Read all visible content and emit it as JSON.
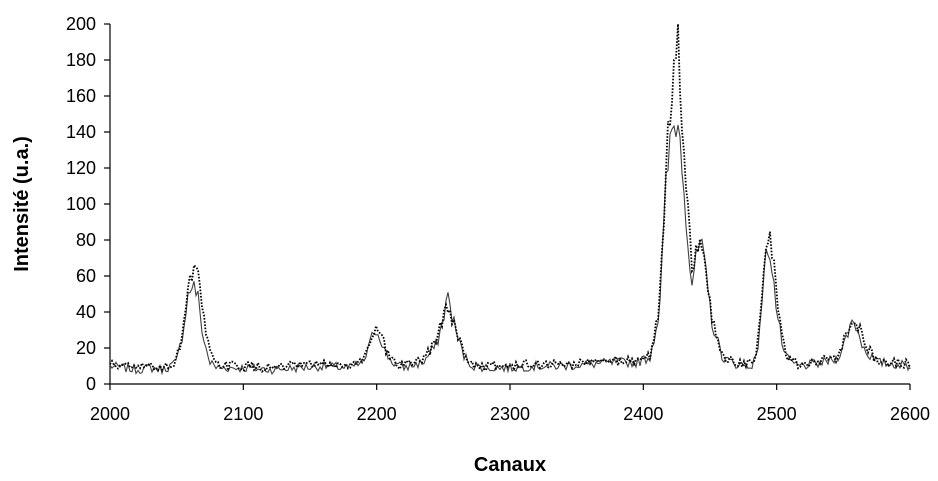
{
  "chart_data": {
    "type": "line",
    "title": "",
    "xlabel": "Canaux",
    "ylabel": "Intensité (u.a.)",
    "xlim": [
      2000,
      2600
    ],
    "ylim": [
      0,
      200
    ],
    "x_ticks": [
      2000,
      2100,
      2200,
      2300,
      2400,
      2500,
      2600
    ],
    "y_ticks": [
      0,
      20,
      40,
      60,
      80,
      100,
      120,
      140,
      160,
      180,
      200
    ],
    "grid": false,
    "legend": "none",
    "series": [
      {
        "style": "solid",
        "color": "#404040",
        "x": [
          2000,
          2010,
          2020,
          2030,
          2040,
          2050,
          2055,
          2058,
          2062,
          2066,
          2070,
          2075,
          2080,
          2100,
          2120,
          2140,
          2160,
          2180,
          2190,
          2195,
          2198,
          2202,
          2206,
          2212,
          2220,
          2235,
          2245,
          2250,
          2253,
          2256,
          2260,
          2265,
          2272,
          2285,
          2300,
          2320,
          2340,
          2360,
          2380,
          2395,
          2405,
          2412,
          2417,
          2421,
          2425,
          2428,
          2432,
          2436,
          2440,
          2443,
          2447,
          2452,
          2460,
          2470,
          2480,
          2485,
          2490,
          2493,
          2496,
          2500,
          2506,
          2515,
          2530,
          2545,
          2552,
          2556,
          2560,
          2565,
          2575,
          2590,
          2600
        ],
        "y": [
          10,
          9,
          8,
          9,
          8,
          12,
          30,
          48,
          56,
          48,
          25,
          12,
          9,
          9,
          8,
          9,
          10,
          9,
          12,
          22,
          30,
          28,
          18,
          12,
          9,
          12,
          22,
          36,
          50,
          40,
          28,
          16,
          10,
          9,
          9,
          10,
          10,
          11,
          12,
          12,
          15,
          40,
          110,
          140,
          146,
          135,
          95,
          55,
          70,
          80,
          60,
          32,
          14,
          11,
          10,
          14,
          55,
          78,
          70,
          40,
          15,
          10,
          11,
          14,
          25,
          35,
          32,
          20,
          12,
          11,
          10
        ]
      },
      {
        "style": "dotted",
        "color": "#000000",
        "x": [
          2000,
          2010,
          2020,
          2030,
          2040,
          2050,
          2055,
          2058,
          2062,
          2065,
          2068,
          2072,
          2077,
          2082,
          2100,
          2120,
          2140,
          2160,
          2180,
          2190,
          2195,
          2199,
          2203,
          2207,
          2213,
          2220,
          2235,
          2245,
          2250,
          2254,
          2258,
          2262,
          2267,
          2274,
          2285,
          2300,
          2320,
          2340,
          2360,
          2380,
          2395,
          2405,
          2412,
          2417,
          2421,
          2424,
          2426,
          2429,
          2433,
          2437,
          2440,
          2443,
          2447,
          2452,
          2460,
          2470,
          2480,
          2485,
          2490,
          2494,
          2497,
          2501,
          2507,
          2515,
          2530,
          2545,
          2552,
          2556,
          2560,
          2566,
          2575,
          2590,
          2600
        ],
        "y": [
          11,
          10,
          9,
          10,
          9,
          13,
          32,
          52,
          62,
          68,
          50,
          26,
          13,
          10,
          10,
          9,
          10,
          11,
          10,
          13,
          24,
          33,
          30,
          19,
          12,
          10,
          13,
          24,
          38,
          42,
          34,
          24,
          15,
          10,
          10,
          10,
          11,
          11,
          12,
          13,
          13,
          16,
          42,
          120,
          162,
          178,
          188,
          150,
          100,
          58,
          74,
          86,
          62,
          34,
          15,
          12,
          11,
          15,
          58,
          84,
          72,
          42,
          16,
          11,
          12,
          15,
          27,
          38,
          35,
          22,
          13,
          12,
          11
        ]
      }
    ]
  }
}
